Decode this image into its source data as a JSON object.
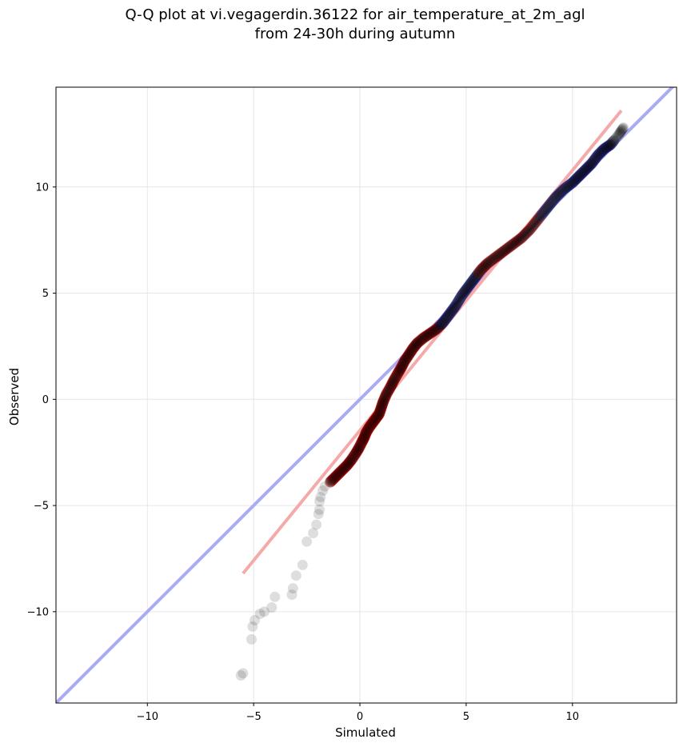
{
  "chart_data": {
    "type": "scatter",
    "title_lines": [
      "Q-Q plot at vi.vegagerdin.36122 for air_temperature_at_2m_agl",
      "from 24-30h during autumn"
    ],
    "xlabel": "Simulated",
    "ylabel": "Observed",
    "xlim": [
      -14.3,
      14.9
    ],
    "ylim": [
      -14.3,
      14.7
    ],
    "xticks": [
      -10,
      -5,
      0,
      5,
      10
    ],
    "yticks": [
      -10,
      -5,
      0,
      5,
      10
    ],
    "xtick_labels": [
      "−10",
      "−5",
      "0",
      "5",
      "10"
    ],
    "ytick_labels": [
      "−10",
      "−5",
      "0",
      "5",
      "10"
    ],
    "grid": true,
    "reference_line": {
      "name": "1:1",
      "color": "#aaaaf5",
      "x": [
        -14.3,
        14.9
      ],
      "y": [
        -14.3,
        14.9
      ]
    },
    "fit_line": {
      "color": "#f5aaaa",
      "x": [
        -5.5,
        12.3
      ],
      "y": [
        -8.2,
        13.6
      ]
    },
    "colors": {
      "points": "#000000",
      "outline_low": "#c00000",
      "outline_high": "#1a1aa0",
      "grid": "#e6e6e6"
    },
    "quantiles": [
      [
        -5.6,
        -13.0
      ],
      [
        -5.5,
        -12.9
      ],
      [
        -5.1,
        -11.3
      ],
      [
        -5.05,
        -10.7
      ],
      [
        -4.95,
        -10.4
      ],
      [
        -4.7,
        -10.1
      ],
      [
        -4.5,
        -10.0
      ],
      [
        -4.15,
        -9.8
      ],
      [
        -4.0,
        -9.3
      ],
      [
        -3.2,
        -9.2
      ],
      [
        -3.15,
        -8.9
      ],
      [
        -3.0,
        -8.3
      ],
      [
        -2.7,
        -7.8
      ],
      [
        -2.5,
        -6.7
      ],
      [
        -2.2,
        -6.3
      ],
      [
        -2.05,
        -5.9
      ],
      [
        -1.95,
        -5.4
      ],
      [
        -1.9,
        -5.2
      ],
      [
        -1.9,
        -4.8
      ],
      [
        -1.85,
        -4.6
      ],
      [
        -1.75,
        -4.3
      ],
      [
        -1.65,
        -4.1
      ],
      [
        -1.4,
        -3.9
      ],
      [
        -1.2,
        -3.7
      ],
      [
        -1.0,
        -3.5
      ],
      [
        -0.8,
        -3.3
      ],
      [
        -0.6,
        -3.1
      ],
      [
        -0.4,
        -2.85
      ],
      [
        -0.2,
        -2.55
      ],
      [
        -0.05,
        -2.3
      ],
      [
        0.1,
        -2.0
      ],
      [
        0.2,
        -1.8
      ],
      [
        0.3,
        -1.55
      ],
      [
        0.45,
        -1.3
      ],
      [
        0.6,
        -1.1
      ],
      [
        0.75,
        -0.9
      ],
      [
        0.9,
        -0.7
      ],
      [
        1.0,
        -0.4
      ],
      [
        1.1,
        -0.1
      ],
      [
        1.25,
        0.25
      ],
      [
        1.45,
        0.6
      ],
      [
        1.6,
        0.9
      ],
      [
        1.8,
        1.25
      ],
      [
        1.95,
        1.5
      ],
      [
        2.1,
        1.8
      ],
      [
        2.3,
        2.1
      ],
      [
        2.5,
        2.4
      ],
      [
        2.7,
        2.65
      ],
      [
        3.0,
        2.9
      ],
      [
        3.3,
        3.1
      ],
      [
        3.6,
        3.3
      ],
      [
        3.9,
        3.6
      ],
      [
        4.2,
        4.0
      ],
      [
        4.5,
        4.4
      ],
      [
        4.8,
        4.9
      ],
      [
        5.1,
        5.3
      ],
      [
        5.4,
        5.7
      ],
      [
        5.7,
        6.1
      ],
      [
        6.0,
        6.4
      ],
      [
        6.4,
        6.7
      ],
      [
        6.8,
        7.0
      ],
      [
        7.2,
        7.3
      ],
      [
        7.6,
        7.6
      ],
      [
        8.0,
        8.0
      ],
      [
        8.4,
        8.5
      ],
      [
        8.8,
        9.0
      ],
      [
        9.2,
        9.5
      ],
      [
        9.6,
        9.9
      ],
      [
        10.0,
        10.2
      ],
      [
        10.3,
        10.5
      ],
      [
        10.6,
        10.8
      ],
      [
        10.9,
        11.1
      ],
      [
        11.2,
        11.5
      ],
      [
        11.5,
        11.8
      ],
      [
        11.8,
        12.0
      ],
      [
        12.2,
        12.5
      ],
      [
        12.4,
        12.8
      ]
    ]
  }
}
